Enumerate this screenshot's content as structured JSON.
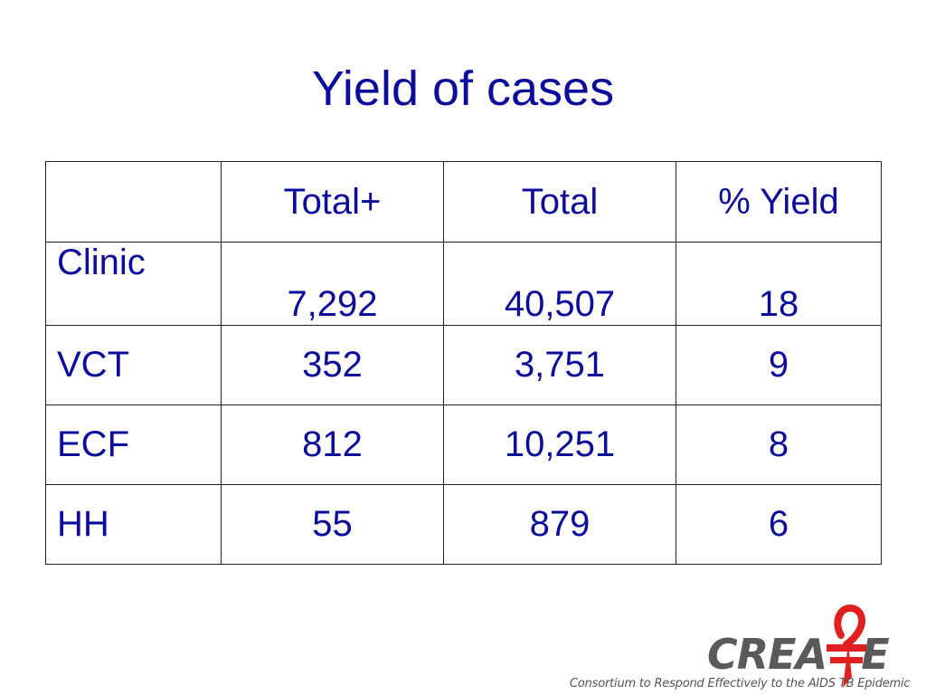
{
  "slide": {
    "title": "Yield of cases"
  },
  "table": {
    "headers": [
      "",
      "Total+",
      "Total",
      "% Yield"
    ],
    "rows": [
      {
        "label": "Clinic",
        "total_plus": "7,292",
        "total": "40,507",
        "yield": "18"
      },
      {
        "label": "VCT",
        "total_plus": "352",
        "total": "3,751",
        "yield": "9"
      },
      {
        "label": "ECF",
        "total_plus": "812",
        "total": "10,251",
        "yield": "8"
      },
      {
        "label": "HH",
        "total_plus": "55",
        "total": "879",
        "yield": "6"
      }
    ]
  },
  "logo": {
    "wordmark": "CREATE",
    "tagline": "Consortium to Respond Effectively to the AIDS  TB Epidemic"
  },
  "colors": {
    "text": "#0d0d9c",
    "logo_gray": "#5a5a5a",
    "logo_red": "#e02020"
  }
}
